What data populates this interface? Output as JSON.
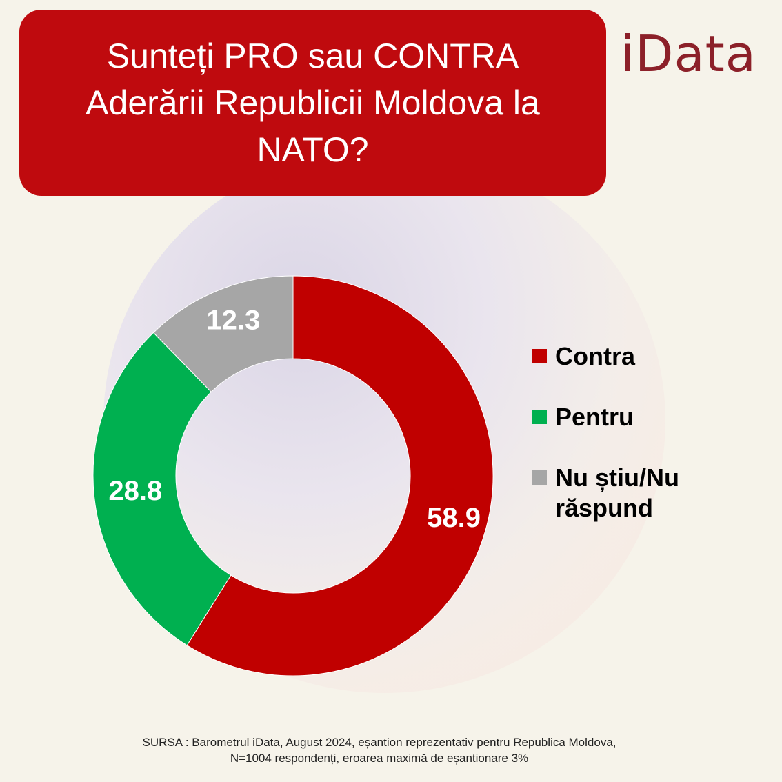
{
  "header": {
    "title_line1": "Sunteți PRO sau CONTRA",
    "title_line2": "Aderării Republicii Moldova la",
    "title_line3": "NATO?",
    "logo_text": "iData"
  },
  "chart_data": {
    "type": "pie",
    "donut": true,
    "title": "Sunteți PRO sau CONTRA Aderării Republicii Moldova la NATO?",
    "categories": [
      "Contra",
      "Pentru",
      "Nu știu/Nu răspund"
    ],
    "values": [
      58.9,
      28.8,
      12.3
    ],
    "value_labels": [
      "58.9",
      "28.8",
      "12.3"
    ],
    "colors": [
      "#c00000",
      "#00b050",
      "#a6a6a6"
    ],
    "start_at": "top",
    "direction": "clockwise",
    "legend_placement": "right"
  },
  "legend": {
    "items": [
      {
        "label": "Contra",
        "color": "#c00000"
      },
      {
        "label": "Pentru",
        "color": "#00b050"
      },
      {
        "label": "Nu știu/Nu răspund",
        "color": "#a6a6a6"
      }
    ]
  },
  "footer": {
    "source_line1": "SURSA : Barometrul iData, August 2024, eșantion reprezentativ pentru Republica Moldova,",
    "source_line2": "N=1004 respondenți, eroarea maximă de eșantionare 3%"
  },
  "colors": {
    "title_bg": "#bf0a0e",
    "logo": "#8c2029"
  }
}
